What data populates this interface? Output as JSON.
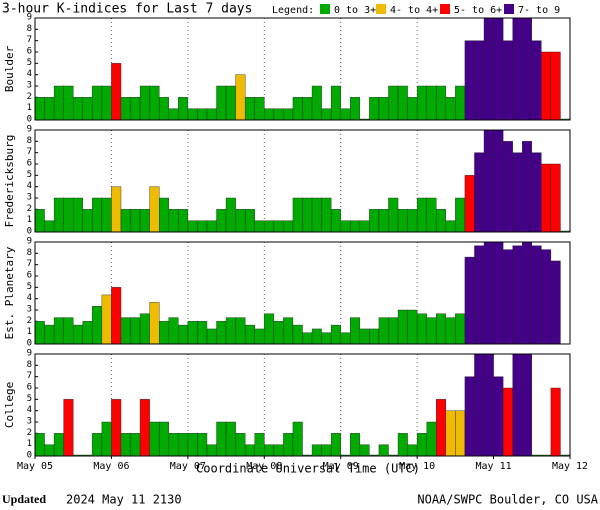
{
  "header": {
    "title": "3-hour K-indices for Last 7 days"
  },
  "legend": {
    "title": "Legend:",
    "items": [
      {
        "label": "0 to 3+",
        "color": "#0a0"
      },
      {
        "label": "4- to 4+",
        "color": "#eb0"
      },
      {
        "label": "5- to 6+",
        "color": "#f00"
      },
      {
        "label": "7- to 9",
        "color": "#408"
      }
    ]
  },
  "chart_data": [
    {
      "type": "bar",
      "ylabel": "Boulder",
      "ylim": [
        0,
        9
      ],
      "yticks": [
        0,
        1,
        2,
        3,
        4,
        5,
        6,
        7,
        8,
        9
      ],
      "grid": true,
      "values": [
        2,
        2,
        3,
        3,
        2,
        2,
        3,
        3,
        5,
        2,
        2,
        3,
        3,
        2,
        1,
        2,
        1,
        1,
        1,
        3,
        3,
        4,
        2,
        2,
        1,
        1,
        1,
        2,
        2,
        3,
        1,
        3,
        1,
        2,
        0,
        2,
        2,
        3,
        3,
        2,
        3,
        3,
        3,
        2,
        3,
        7,
        7,
        9,
        9,
        7,
        9,
        9,
        7,
        6,
        6,
        0
      ],
      "colors": [
        "#0a0",
        "#0a0",
        "#0a0",
        "#0a0",
        "#0a0",
        "#0a0",
        "#0a0",
        "#0a0",
        "#f00",
        "#0a0",
        "#0a0",
        "#0a0",
        "#0a0",
        "#0a0",
        "#0a0",
        "#0a0",
        "#0a0",
        "#0a0",
        "#0a0",
        "#0a0",
        "#0a0",
        "#eb0",
        "#0a0",
        "#0a0",
        "#0a0",
        "#0a0",
        "#0a0",
        "#0a0",
        "#0a0",
        "#0a0",
        "#0a0",
        "#0a0",
        "#0a0",
        "#0a0",
        "#0a0",
        "#0a0",
        "#0a0",
        "#0a0",
        "#0a0",
        "#0a0",
        "#0a0",
        "#0a0",
        "#0a0",
        "#0a0",
        "#0a0",
        "#408",
        "#408",
        "#408",
        "#408",
        "#408",
        "#408",
        "#408",
        "#408",
        "#f00",
        "#f00",
        "#0a0"
      ]
    },
    {
      "type": "bar",
      "ylabel": "Fredericksburg",
      "ylim": [
        0,
        9
      ],
      "yticks": [
        0,
        1,
        2,
        3,
        4,
        5,
        6,
        7,
        8,
        9
      ],
      "grid": true,
      "values": [
        2,
        1,
        3,
        3,
        3,
        2,
        3,
        3,
        4,
        2,
        2,
        2,
        4,
        3,
        2,
        2,
        1,
        1,
        1,
        2,
        3,
        2,
        2,
        1,
        1,
        1,
        1,
        3,
        3,
        3,
        3,
        2,
        1,
        1,
        1,
        2,
        2,
        3,
        2,
        2,
        3,
        3,
        2,
        1,
        3,
        5,
        7,
        9,
        9,
        8,
        7,
        8,
        7,
        6,
        6,
        0
      ],
      "colors": [
        "#0a0",
        "#0a0",
        "#0a0",
        "#0a0",
        "#0a0",
        "#0a0",
        "#0a0",
        "#0a0",
        "#eb0",
        "#0a0",
        "#0a0",
        "#0a0",
        "#eb0",
        "#0a0",
        "#0a0",
        "#0a0",
        "#0a0",
        "#0a0",
        "#0a0",
        "#0a0",
        "#0a0",
        "#0a0",
        "#0a0",
        "#0a0",
        "#0a0",
        "#0a0",
        "#0a0",
        "#0a0",
        "#0a0",
        "#0a0",
        "#0a0",
        "#0a0",
        "#0a0",
        "#0a0",
        "#0a0",
        "#0a0",
        "#0a0",
        "#0a0",
        "#0a0",
        "#0a0",
        "#0a0",
        "#0a0",
        "#0a0",
        "#0a0",
        "#0a0",
        "#f00",
        "#408",
        "#408",
        "#408",
        "#408",
        "#408",
        "#408",
        "#408",
        "#f00",
        "#f00",
        "#0a0"
      ]
    },
    {
      "type": "bar",
      "ylabel": "Est. Planetary",
      "ylim": [
        0,
        9
      ],
      "yticks": [
        0,
        1,
        2,
        3,
        4,
        5,
        6,
        7,
        8,
        9
      ],
      "grid": true,
      "values": [
        2,
        1.67,
        2.33,
        2.33,
        1.67,
        2,
        3.33,
        4.33,
        5,
        2.33,
        2.33,
        2.67,
        3.67,
        2,
        2.33,
        1.67,
        2,
        2,
        1.33,
        2,
        2.33,
        2.33,
        1.67,
        1.33,
        2.67,
        2,
        2.33,
        1.67,
        1,
        1.33,
        1,
        1.67,
        1,
        2.33,
        1.33,
        1.33,
        2.33,
        2.33,
        3,
        3,
        2.67,
        2.33,
        2.67,
        2.33,
        2.67,
        7.67,
        8.67,
        9,
        9,
        8.33,
        8.67,
        9,
        8.67,
        8.33,
        7.33,
        null
      ],
      "colors": [
        "#0a0",
        "#0a0",
        "#0a0",
        "#0a0",
        "#0a0",
        "#0a0",
        "#0a0",
        "#eb0",
        "#f00",
        "#0a0",
        "#0a0",
        "#0a0",
        "#eb0",
        "#0a0",
        "#0a0",
        "#0a0",
        "#0a0",
        "#0a0",
        "#0a0",
        "#0a0",
        "#0a0",
        "#0a0",
        "#0a0",
        "#0a0",
        "#0a0",
        "#0a0",
        "#0a0",
        "#0a0",
        "#0a0",
        "#0a0",
        "#0a0",
        "#0a0",
        "#0a0",
        "#0a0",
        "#0a0",
        "#0a0",
        "#0a0",
        "#0a0",
        "#0a0",
        "#0a0",
        "#0a0",
        "#0a0",
        "#0a0",
        "#0a0",
        "#0a0",
        "#408",
        "#408",
        "#408",
        "#408",
        "#408",
        "#408",
        "#408",
        "#408",
        "#408",
        "#408",
        "#0a0"
      ]
    },
    {
      "type": "bar",
      "ylabel": "College",
      "ylim": [
        0,
        9
      ],
      "yticks": [
        0,
        1,
        2,
        3,
        4,
        5,
        6,
        7,
        8,
        9
      ],
      "grid": true,
      "values": [
        2,
        1,
        2,
        5,
        0,
        0,
        2,
        3,
        5,
        2,
        2,
        5,
        3,
        3,
        2,
        2,
        2,
        2,
        1,
        3,
        3,
        2,
        1,
        2,
        1,
        1,
        2,
        3,
        0,
        1,
        1,
        2,
        0,
        2,
        1,
        0,
        1,
        0,
        2,
        1,
        2,
        3,
        5,
        4,
        4,
        7,
        9,
        9,
        7,
        6,
        9,
        9,
        0,
        0,
        6,
        0
      ],
      "colors": [
        "#0a0",
        "#0a0",
        "#0a0",
        "#f00",
        "#0a0",
        "#0a0",
        "#0a0",
        "#0a0",
        "#f00",
        "#0a0",
        "#0a0",
        "#f00",
        "#0a0",
        "#0a0",
        "#0a0",
        "#0a0",
        "#0a0",
        "#0a0",
        "#0a0",
        "#0a0",
        "#0a0",
        "#0a0",
        "#0a0",
        "#0a0",
        "#0a0",
        "#0a0",
        "#0a0",
        "#0a0",
        "#0a0",
        "#0a0",
        "#0a0",
        "#0a0",
        "#0a0",
        "#0a0",
        "#0a0",
        "#0a0",
        "#0a0",
        "#0a0",
        "#0a0",
        "#0a0",
        "#0a0",
        "#0a0",
        "#f00",
        "#eb0",
        "#eb0",
        "#408",
        "#408",
        "#408",
        "#408",
        "#f00",
        "#408",
        "#408",
        "#0a0",
        "#0a0",
        "#f00",
        "#0a0"
      ]
    }
  ],
  "x_axis": {
    "labels": [
      "May 05",
      "May 06",
      "May 07",
      "May 08",
      "May 09",
      "May 10",
      "May 11",
      "May 12"
    ],
    "title": "Coordinate Universal Time (UTC)"
  },
  "footer": {
    "updated": "Updated",
    "time": "2024 May 11 2130",
    "credit": "NOAA/SWPC Boulder, CO USA"
  }
}
